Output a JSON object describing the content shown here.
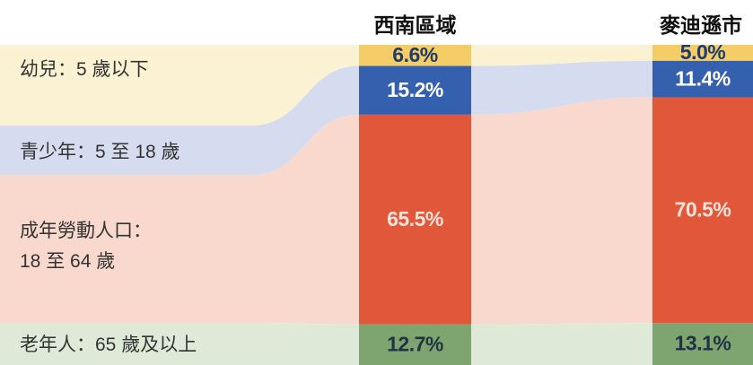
{
  "chart_data": {
    "type": "bar",
    "stacked": true,
    "categories": [
      "西南區域",
      "麥迪遜市"
    ],
    "series": [
      {
        "name": "幼兒：5 歲以下",
        "color": "#f5cd66",
        "band_color": "#fbf2d3",
        "label_color": "#1f3a6e",
        "values": [
          6.6,
          5.0
        ],
        "value_labels": [
          "6.6%",
          "5.0%"
        ]
      },
      {
        "name": "青少年：5 至 18 歲",
        "color": "#3560ad",
        "band_color": "#d5dcef",
        "label_color": "#ffffff",
        "values": [
          15.2,
          11.4
        ],
        "value_labels": [
          "15.2%",
          "11.4%"
        ]
      },
      {
        "name": "成年勞動人口：\n18 至 64 歲",
        "color": "#e1573a",
        "band_color": "#f9d8ce",
        "label_color": "#fde3da",
        "values": [
          65.5,
          70.5
        ],
        "value_labels": [
          "65.5%",
          "70.5%"
        ]
      },
      {
        "name": "老年人：65 歲及以上",
        "color": "#7ea46f",
        "band_color": "#dfe9d7",
        "label_color": "#1f3345",
        "values": [
          12.7,
          13.1
        ],
        "value_labels": [
          "12.7%",
          "13.1%"
        ]
      }
    ],
    "ylim": [
      0,
      100
    ]
  }
}
